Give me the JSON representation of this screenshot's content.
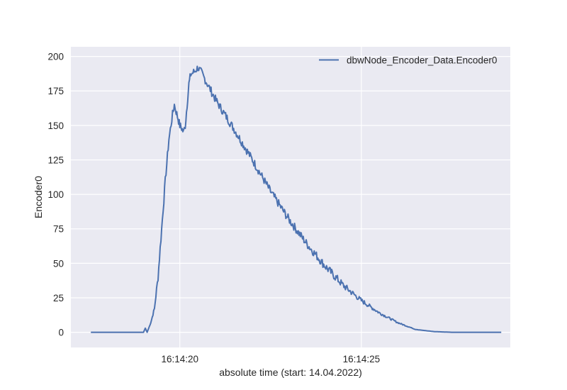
{
  "chart_data": {
    "type": "line",
    "title": "",
    "xlabel": "absolute time (start: 14.04.2022)",
    "ylabel": "Encoder0",
    "x_unit": "time (HH:MM:SS)",
    "x_ticks": [
      {
        "t": 20,
        "label": "16:14:20"
      },
      {
        "t": 25,
        "label": "16:14:25"
      }
    ],
    "xlim": [
      17.0,
      29.1
    ],
    "ylim": [
      -11,
      207
    ],
    "y_ticks": [
      0,
      25,
      50,
      75,
      100,
      125,
      150,
      175,
      200
    ],
    "grid": true,
    "legend_position": "top-right",
    "series": [
      {
        "name": "dbwNode_Encoder_Data.Encoder0",
        "color": "#4c72b0",
        "noise": 3,
        "x": [
          17.55,
          19.0,
          19.05,
          19.1,
          19.2,
          19.3,
          19.4,
          19.5,
          19.6,
          19.7,
          19.8,
          19.85,
          19.9,
          19.95,
          20.0,
          20.05,
          20.1,
          20.15,
          20.2,
          20.25,
          20.3,
          20.4,
          20.5,
          20.6,
          20.7,
          20.8,
          21.0,
          21.5,
          22.0,
          22.5,
          23.0,
          23.5,
          24.0,
          24.5,
          25.0,
          25.5,
          26.0,
          26.5,
          27.0,
          27.5,
          27.8,
          28.0,
          28.85
        ],
        "y": [
          0,
          0,
          3,
          0,
          7,
          17,
          40,
          75,
          110,
          140,
          158,
          165,
          160,
          155,
          150,
          148,
          145,
          150,
          165,
          180,
          187,
          189,
          192,
          188,
          183,
          178,
          168,
          147,
          125,
          102,
          82,
          64,
          48,
          34,
          23,
          14,
          7,
          2,
          0.5,
          0,
          0,
          0,
          0
        ]
      }
    ]
  }
}
